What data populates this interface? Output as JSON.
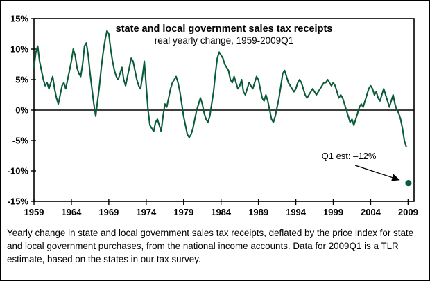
{
  "caption": "Yearly change in state and local government sales tax receipts, deflated by the price index for state and local government purchases, from the national income accounts. Data for 2009Q1 is a TLR estimate, based on the states in our tax survey.",
  "chart_data": {
    "type": "line",
    "title": "state and local government sales tax receipts",
    "subtitle": "real yearly change, 1959-2009Q1",
    "line_color": "#0a5b38",
    "xlim": [
      1959,
      2009.8
    ],
    "ylim": [
      -15,
      15
    ],
    "x_start": 1959,
    "x_step": 0.25,
    "yticks": [
      "15%",
      "10%",
      "5%",
      "0%",
      "-5%",
      "-10%",
      "-15%"
    ],
    "ytick_values": [
      15,
      10,
      5,
      0,
      -5,
      -10,
      -15
    ],
    "xticks": [
      1959,
      1964,
      1969,
      1974,
      1979,
      1984,
      1989,
      1994,
      1999,
      2004,
      2009
    ],
    "values": [
      7,
      9.5,
      10.5,
      8,
      6.5,
      5,
      4,
      4.5,
      3.5,
      4.5,
      5.5,
      3.5,
      2,
      1,
      2.5,
      4,
      4.5,
      3.5,
      5,
      6.5,
      8,
      10,
      9,
      7,
      6,
      5.5,
      7.5,
      10.5,
      11,
      9,
      6,
      3.5,
      1,
      -1,
      1.5,
      4,
      7,
      9.5,
      11.5,
      13,
      12.5,
      10,
      8,
      6.5,
      5.5,
      5,
      6,
      7,
      5,
      4,
      5.5,
      7,
      8.5,
      8,
      6.5,
      5,
      4,
      3.5,
      5.5,
      8,
      4,
      0,
      -2.5,
      -3,
      -3.5,
      -2,
      -1.5,
      -2.5,
      -3.5,
      -1,
      1,
      0.5,
      2,
      3.5,
      4.5,
      5,
      5.5,
      4.5,
      3,
      1,
      -1,
      -2.5,
      -4,
      -4.5,
      -4,
      -3,
      -1.5,
      0,
      1,
      2,
      1,
      -0.5,
      -1.5,
      -2,
      -1,
      1,
      3,
      6,
      8.5,
      9.5,
      9,
      8.5,
      7.5,
      7,
      6.5,
      5,
      4.5,
      5.5,
      4.5,
      3.5,
      4,
      5,
      3,
      2.5,
      3.5,
      4.5,
      4,
      3.5,
      4.5,
      5.5,
      5,
      3.5,
      2,
      1.5,
      2.5,
      1.5,
      0,
      -1.5,
      -2,
      -1,
      0.5,
      2,
      4,
      6,
      6.5,
      5.5,
      4.5,
      4,
      3.5,
      3,
      3.5,
      4.5,
      5,
      4.5,
      3.5,
      2.5,
      2,
      2.5,
      3,
      3.5,
      3,
      2.5,
      3,
      3.5,
      4,
      4.5,
      4.5,
      5,
      4.5,
      4,
      4.5,
      4,
      3,
      2,
      2.5,
      2,
      1,
      0,
      -1,
      -2,
      -1.5,
      -2.5,
      -1.5,
      -0.5,
      0.5,
      1,
      0.5,
      1.5,
      2.5,
      3.5,
      4,
      3.5,
      2.5,
      3,
      2,
      1.5,
      2.5,
      3.5,
      2.5,
      1.5,
      0.5,
      1.5,
      2.5,
      1,
      0,
      -0.5,
      -1.5,
      -3,
      -5,
      -6
    ],
    "point": {
      "x": 2009.05,
      "y": -12,
      "label": "Q1 est: –12%"
    },
    "zero_line": true,
    "grid": false,
    "legend": "none"
  }
}
